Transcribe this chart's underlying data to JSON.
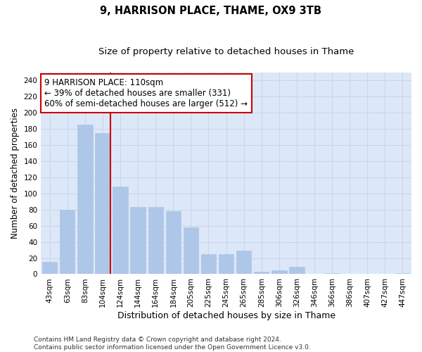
{
  "title": "9, HARRISON PLACE, THAME, OX9 3TB",
  "subtitle": "Size of property relative to detached houses in Thame",
  "xlabel": "Distribution of detached houses by size in Thame",
  "ylabel": "Number of detached properties",
  "categories": [
    "43sqm",
    "63sqm",
    "83sqm",
    "104sqm",
    "124sqm",
    "144sqm",
    "164sqm",
    "184sqm",
    "205sqm",
    "225sqm",
    "245sqm",
    "265sqm",
    "285sqm",
    "306sqm",
    "326sqm",
    "346sqm",
    "366sqm",
    "386sqm",
    "407sqm",
    "427sqm",
    "447sqm"
  ],
  "values": [
    15,
    80,
    185,
    175,
    108,
    83,
    83,
    78,
    58,
    25,
    25,
    29,
    3,
    5,
    9,
    0,
    1,
    0,
    0,
    0,
    1
  ],
  "bar_color": "#aec6e8",
  "bar_edge_color": "#aec6e8",
  "grid_color": "#c8d4e8",
  "background_color": "#dce8f8",
  "vline_color": "#cc0000",
  "annotation_text": "9 HARRISON PLACE: 110sqm\n← 39% of detached houses are smaller (331)\n60% of semi-detached houses are larger (512) →",
  "annotation_box_color": "#ffffff",
  "annotation_box_edge_color": "#cc0000",
  "ylim": [
    0,
    250
  ],
  "yticks": [
    0,
    20,
    40,
    60,
    80,
    100,
    120,
    140,
    160,
    180,
    200,
    220,
    240
  ],
  "footer": "Contains HM Land Registry data © Crown copyright and database right 2024.\nContains public sector information licensed under the Open Government Licence v3.0.",
  "title_fontsize": 10.5,
  "subtitle_fontsize": 9.5,
  "xlabel_fontsize": 9,
  "ylabel_fontsize": 8.5,
  "tick_fontsize": 7.5,
  "annotation_fontsize": 8.5,
  "footer_fontsize": 6.5
}
